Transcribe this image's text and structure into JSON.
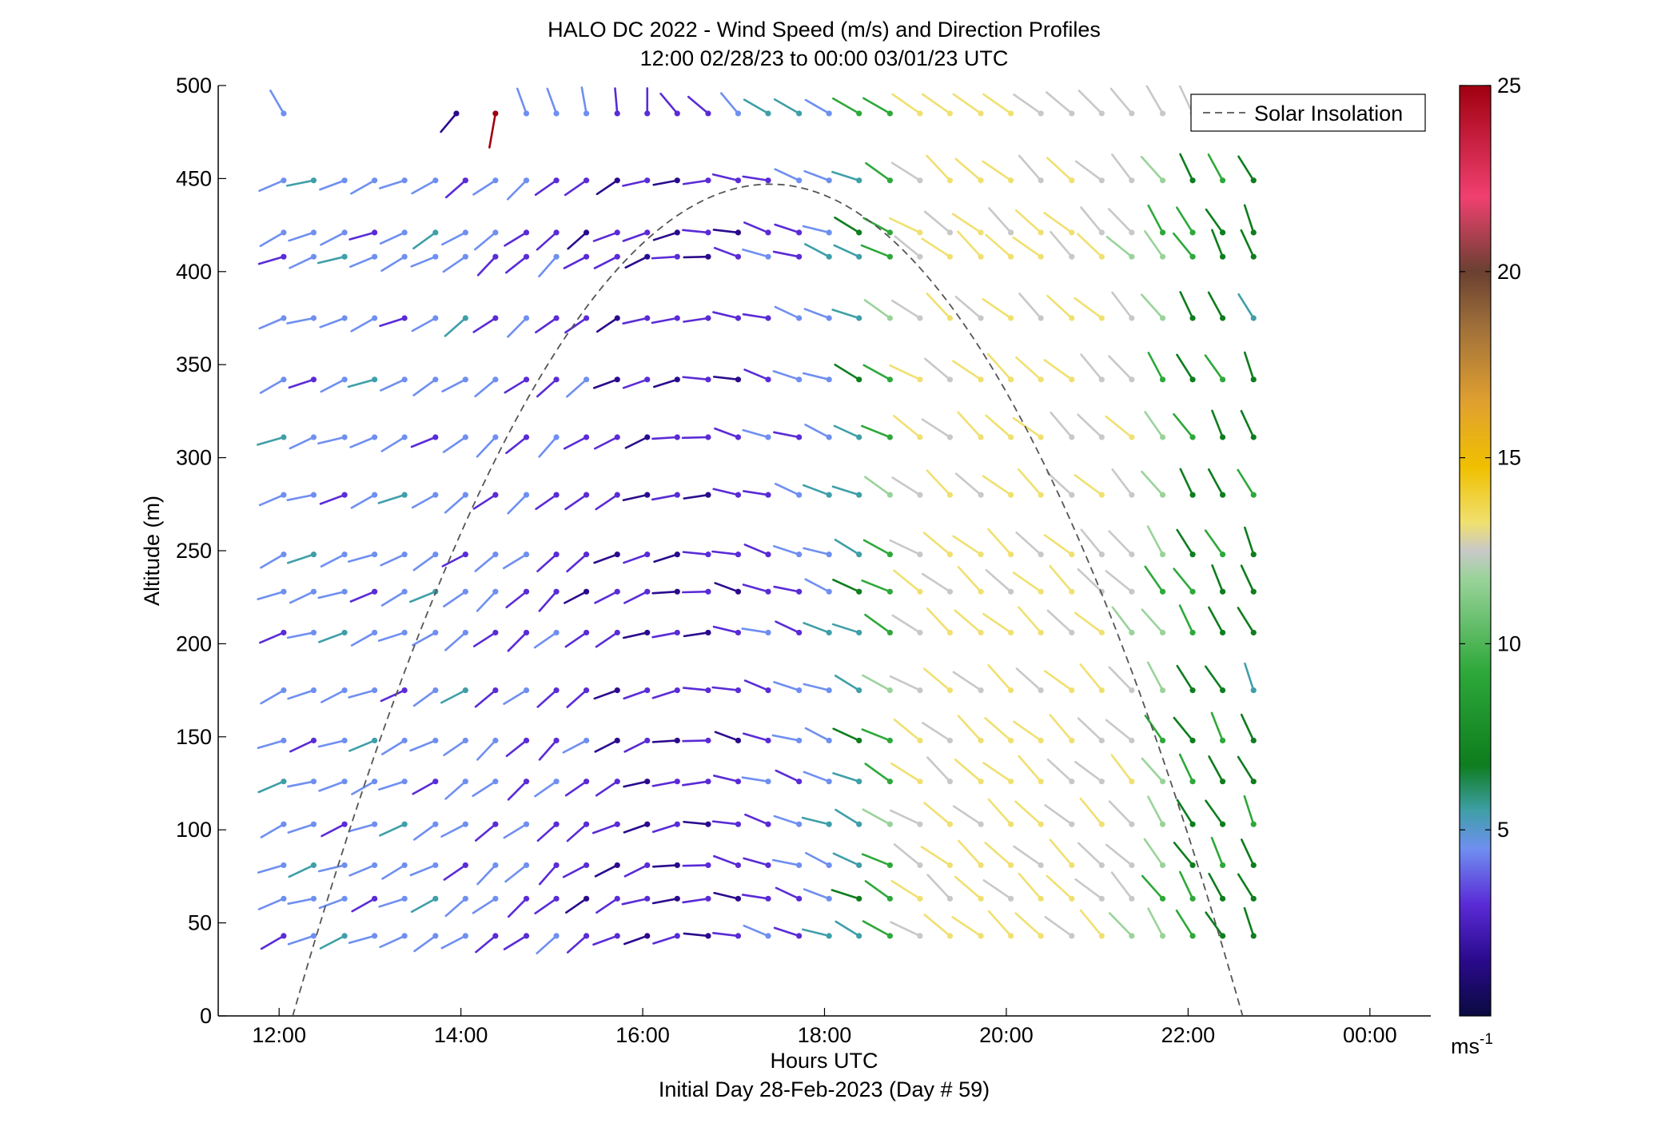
{
  "chart_data": {
    "type": "wind-barb",
    "title": "HALO DC 2022 - Wind Speed (m/s) and Direction Profiles",
    "subtitle": "12:00 02/28/23 to 00:00 03/01/23  UTC",
    "xlabel": "Hours UTC",
    "xlabel2": "Initial Day 28-Feb-2023 (Day # 59)",
    "ylabel": "Altitude (m)",
    "x_tick_labels": [
      "12:00",
      "14:00",
      "16:00",
      "18:00",
      "20:00",
      "22:00",
      "00:00"
    ],
    "x_tick_hours": [
      12,
      14,
      16,
      18,
      20,
      22,
      24
    ],
    "xlim": [
      11.33,
      24.67
    ],
    "y_ticks": [
      0,
      50,
      100,
      150,
      200,
      250,
      300,
      350,
      400,
      450,
      500
    ],
    "ylim": [
      0,
      500
    ],
    "colorbar": {
      "ticks": [
        5,
        10,
        15,
        20,
        25
      ],
      "range": [
        0,
        25
      ],
      "unit_label": "ms",
      "unit_exponent": "-1"
    },
    "legend": {
      "entries": [
        "Solar Insolation"
      ],
      "position": "top-right"
    },
    "solar_insolation": {
      "start_hour": 12.15,
      "end_hour": 22.6,
      "peak_hour": 17.4,
      "peak_altitude": 447,
      "line_color": "#555555"
    },
    "time_hours": [
      12.05,
      12.38,
      12.72,
      13.05,
      13.38,
      13.72,
      14.05,
      14.38,
      14.72,
      15.05,
      15.38,
      15.72,
      16.05,
      16.38,
      16.72,
      17.05,
      17.38,
      17.72,
      18.05,
      18.38,
      18.72,
      19.05,
      19.38,
      19.72,
      20.05,
      20.38,
      20.72,
      21.05,
      21.38,
      21.72,
      22.05,
      22.38,
      22.72
    ],
    "altitudes": [
      43,
      63,
      81,
      103,
      126,
      148,
      175,
      206,
      228,
      248,
      280,
      311,
      342,
      375,
      408,
      421,
      449
    ],
    "speed_profile_hours": [
      12,
      14,
      16,
      17,
      18,
      18.5,
      19,
      20,
      21,
      21.5,
      22,
      22.7
    ],
    "speed_profile_ms": [
      3.0,
      3.0,
      1.5,
      1.8,
      3.0,
      4.5,
      8.5,
      9.0,
      8.5,
      8.0,
      5.5,
      5.0
    ],
    "direction_profile_hours": [
      12,
      13.5,
      15,
      16,
      17,
      18,
      19,
      20,
      21,
      22,
      22.7
    ],
    "direction_profile_deg": [
      250,
      245,
      225,
      250,
      280,
      290,
      305,
      310,
      315,
      325,
      335
    ],
    "top_level": {
      "altitude": 485,
      "time_hours": [
        12.05,
        13.95,
        14.38,
        14.72,
        15.05,
        15.38,
        15.72,
        16.05,
        16.38,
        16.72,
        17.05,
        17.38,
        17.72,
        18.05,
        18.38,
        18.72,
        19.05,
        19.38,
        19.72,
        20.05,
        20.38,
        20.72,
        21.05,
        21.38,
        21.72,
        22.05
      ],
      "speed_ms": [
        3.0,
        1.0,
        22.0,
        3.0,
        3.0,
        3.0,
        2.0,
        2.0,
        2.5,
        2.5,
        3.0,
        4.0,
        4.5,
        3.5,
        6.0,
        6.5,
        9.0,
        9.0,
        9.0,
        9.0,
        8.5,
        8.5,
        8.0,
        8.0,
        8.5,
        8.0
      ],
      "direction_deg": [
        330,
        220,
        190,
        340,
        340,
        350,
        355,
        0,
        320,
        310,
        320,
        300,
        300,
        300,
        300,
        300,
        305,
        305,
        305,
        305,
        305,
        310,
        315,
        320,
        330,
        335
      ]
    },
    "colors": {
      "speed_colormap": [
        "#0a0a40",
        "#2a0a8c",
        "#5a2bd6",
        "#6f8ff0",
        "#3f9fa8",
        "#0e7d1e",
        "#2ea83a",
        "#9ad39a",
        "#c8c8c8",
        "#f0e070",
        "#f0c000",
        "#e0a030",
        "#a0703a",
        "#6a4030",
        "#f04070",
        "#c01030",
        "#a00010"
      ]
    }
  }
}
